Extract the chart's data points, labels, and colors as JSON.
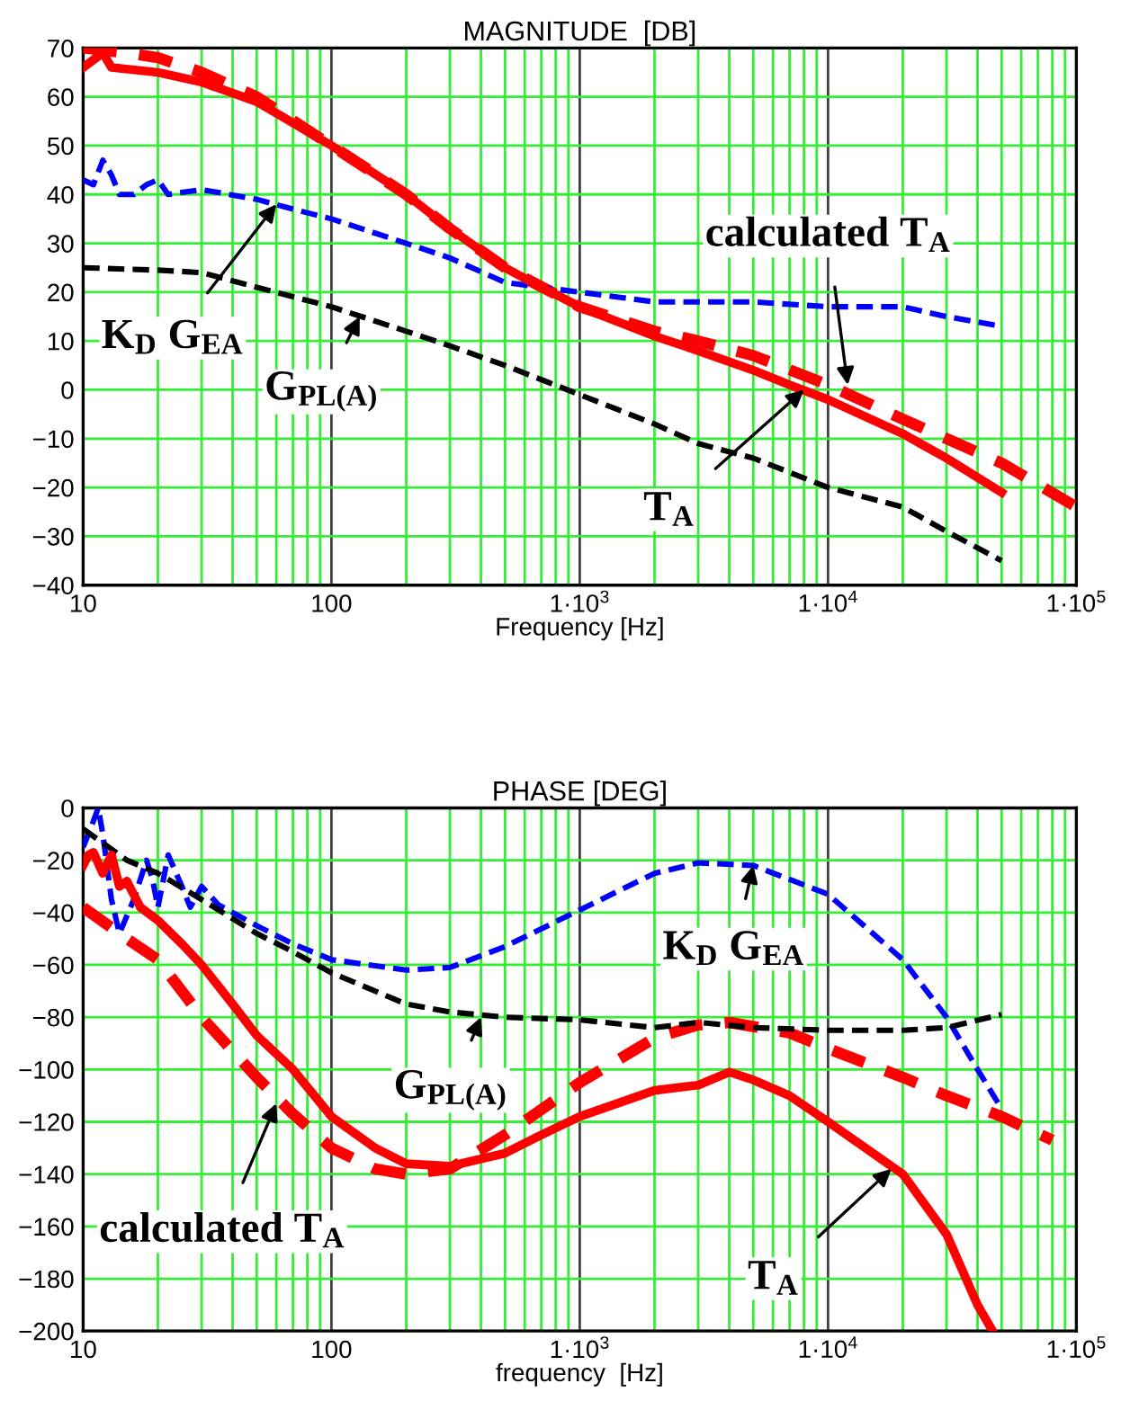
{
  "chart_data": [
    {
      "type": "line",
      "title": "MAGNITUDE  [DB]",
      "xlabel": "Frequency [Hz]",
      "log": "x",
      "grid": true,
      "xlim": [
        10,
        100000
      ],
      "xticks": [
        10,
        100,
        {
          "value": 1000,
          "label": "1·10$^{3}$"
        },
        {
          "value": 10000,
          "label": "1·10$^{4}$"
        },
        {
          "value": 100000,
          "label": "1·10$^{5}$"
        }
      ],
      "ylim": [
        -40,
        70
      ],
      "yticks": [
        -40,
        -30,
        -20,
        -10,
        0,
        10,
        20,
        30,
        40,
        50,
        60,
        70
      ],
      "series": [
        {
          "color": "#ff0000",
          "line_style": "solid",
          "x": [
            10,
            12,
            13,
            20,
            30,
            50,
            100,
            200,
            300,
            500,
            700,
            1000,
            2000,
            3000,
            5000,
            7000,
            10000,
            20000,
            30000,
            50000
          ],
          "values": [
            66,
            69,
            66,
            65,
            63,
            59,
            50,
            40,
            33,
            25,
            21,
            17,
            11,
            8,
            4,
            1,
            -2,
            -9,
            -14,
            -21
          ]
        },
        {
          "color": "#ff0000",
          "line_style": "dashed",
          "x": [
            10,
            15,
            20,
            30,
            50,
            100,
            200,
            300,
            500,
            1000,
            2000,
            3000,
            5000,
            10000,
            20000,
            30000,
            50000,
            100000
          ],
          "values": [
            70,
            69,
            68,
            65,
            60,
            50,
            40,
            33,
            25,
            17,
            12,
            10,
            7,
            1,
            -6,
            -10,
            -15,
            -24
          ]
        },
        {
          "color": "#0000ff",
          "line_style": "dashed",
          "x": [
            10,
            11,
            12,
            13,
            14,
            16,
            18,
            20,
            22,
            30,
            50,
            70,
            100,
            200,
            300,
            500,
            700,
            1000,
            2000,
            5000,
            10000,
            20000,
            30000,
            50000
          ],
          "values": [
            43,
            42,
            47,
            44,
            40,
            40,
            42,
            43,
            40,
            41,
            39,
            37,
            35,
            30,
            27,
            22,
            21,
            20,
            18,
            18,
            17,
            17,
            15,
            13
          ]
        },
        {
          "color": "#000000",
          "line_style": "dashed",
          "x": [
            10,
            20,
            30,
            50,
            100,
            200,
            300,
            500,
            1000,
            2000,
            3000,
            5000,
            10000,
            20000,
            30000,
            50000
          ],
          "values": [
            25,
            24.5,
            24,
            21,
            17,
            12,
            9,
            5,
            -1,
            -7,
            -11,
            -14,
            -20,
            -24,
            -29,
            -35
          ]
        }
      ],
      "annotations": [
        {
          "text": "K$_{D}$ G$_{EA}$",
          "x": 60,
          "y": 38
        },
        {
          "text": "G$_{PL(A)}$",
          "x": 130,
          "y": 15
        },
        {
          "text": "calculated T$_{A}$",
          "x": 12000,
          "y": 1
        },
        {
          "text": "T$_{A}$",
          "x": 8000,
          "y": 0
        }
      ]
    },
    {
      "type": "line",
      "title": "PHASE [DEG]",
      "xlabel": "frequency  [Hz]",
      "log": "x",
      "grid": true,
      "xlim": [
        10,
        100000
      ],
      "xticks": [
        10,
        100,
        {
          "value": 1000,
          "label": "1·10$^{3}$"
        },
        {
          "value": 10000,
          "label": "1·10$^{4}$"
        },
        {
          "value": 100000,
          "label": "1·10$^{5}$"
        }
      ],
      "ylim": [
        -200,
        0
      ],
      "yticks": [
        -200,
        -180,
        -160,
        -140,
        -120,
        -100,
        -80,
        -60,
        -40,
        -20,
        0
      ],
      "series": [
        {
          "color": "#ff0000",
          "line_style": "solid",
          "x": [
            10,
            10.5,
            11,
            12,
            13,
            14,
            15,
            17,
            20,
            25,
            30,
            40,
            50,
            70,
            100,
            150,
            200,
            300,
            500,
            700,
            1000,
            2000,
            3000,
            4000,
            5000,
            7000,
            10000,
            20000,
            30000,
            40000,
            46000
          ],
          "values": [
            -22,
            -18,
            -17,
            -25,
            -18,
            -30,
            -28,
            -38,
            -43,
            -52,
            -60,
            -75,
            -87,
            -100,
            -118,
            -130,
            -136,
            -137,
            -132,
            -125,
            -118,
            -108,
            -106,
            -101,
            -104,
            -110,
            -120,
            -140,
            -163,
            -190,
            -200
          ]
        },
        {
          "color": "#ff0000",
          "line_style": "dashed",
          "x": [
            10,
            15,
            20,
            30,
            50,
            70,
            100,
            150,
            200,
            300,
            500,
            1000,
            2000,
            3000,
            4000,
            7000,
            10000,
            20000,
            30000,
            50000,
            80000
          ],
          "values": [
            -38,
            -50,
            -58,
            -80,
            -103,
            -117,
            -130,
            -138,
            -140,
            -138,
            -125,
            -105,
            -88,
            -83,
            -82,
            -86,
            -92,
            -103,
            -110,
            -118,
            -127
          ]
        },
        {
          "color": "#0000ff",
          "line_style": "dashed",
          "x": [
            10,
            11,
            11.5,
            12,
            13,
            14,
            16,
            18,
            19,
            20,
            22,
            25,
            27,
            30,
            35,
            50,
            70,
            100,
            200,
            300,
            500,
            1000,
            2000,
            3000,
            5000,
            10000,
            20000,
            30000,
            40000,
            50000
          ],
          "values": [
            -15,
            -5,
            0,
            -10,
            -35,
            -48,
            -35,
            -20,
            -27,
            -38,
            -18,
            -30,
            -38,
            -30,
            -37,
            -45,
            -52,
            -58,
            -62,
            -61,
            -53,
            -39,
            -25,
            -21,
            -22,
            -33,
            -58,
            -80,
            -100,
            -115
          ]
        },
        {
          "color": "#000000",
          "line_style": "dashed",
          "x": [
            10,
            15,
            20,
            30,
            50,
            70,
            100,
            200,
            300,
            500,
            1000,
            2000,
            3000,
            5000,
            10000,
            20000,
            30000,
            50000
          ],
          "values": [
            -8,
            -20,
            -25,
            -35,
            -48,
            -55,
            -63,
            -75,
            -78,
            -80,
            -81,
            -84,
            -82,
            -84,
            -85,
            -85,
            -84,
            -79
          ]
        }
      ],
      "annotations": [
        {
          "text": "K$_{D}$ G$_{EA}$",
          "x": 5000,
          "y": -22
        },
        {
          "text": "G$_{PL(A)}$",
          "x": 400,
          "y": -80
        },
        {
          "text": "calculated T$_{A}$",
          "x": 60,
          "y": -113
        },
        {
          "text": "T$_{A}$",
          "x": 18000,
          "y": -138
        }
      ]
    }
  ]
}
